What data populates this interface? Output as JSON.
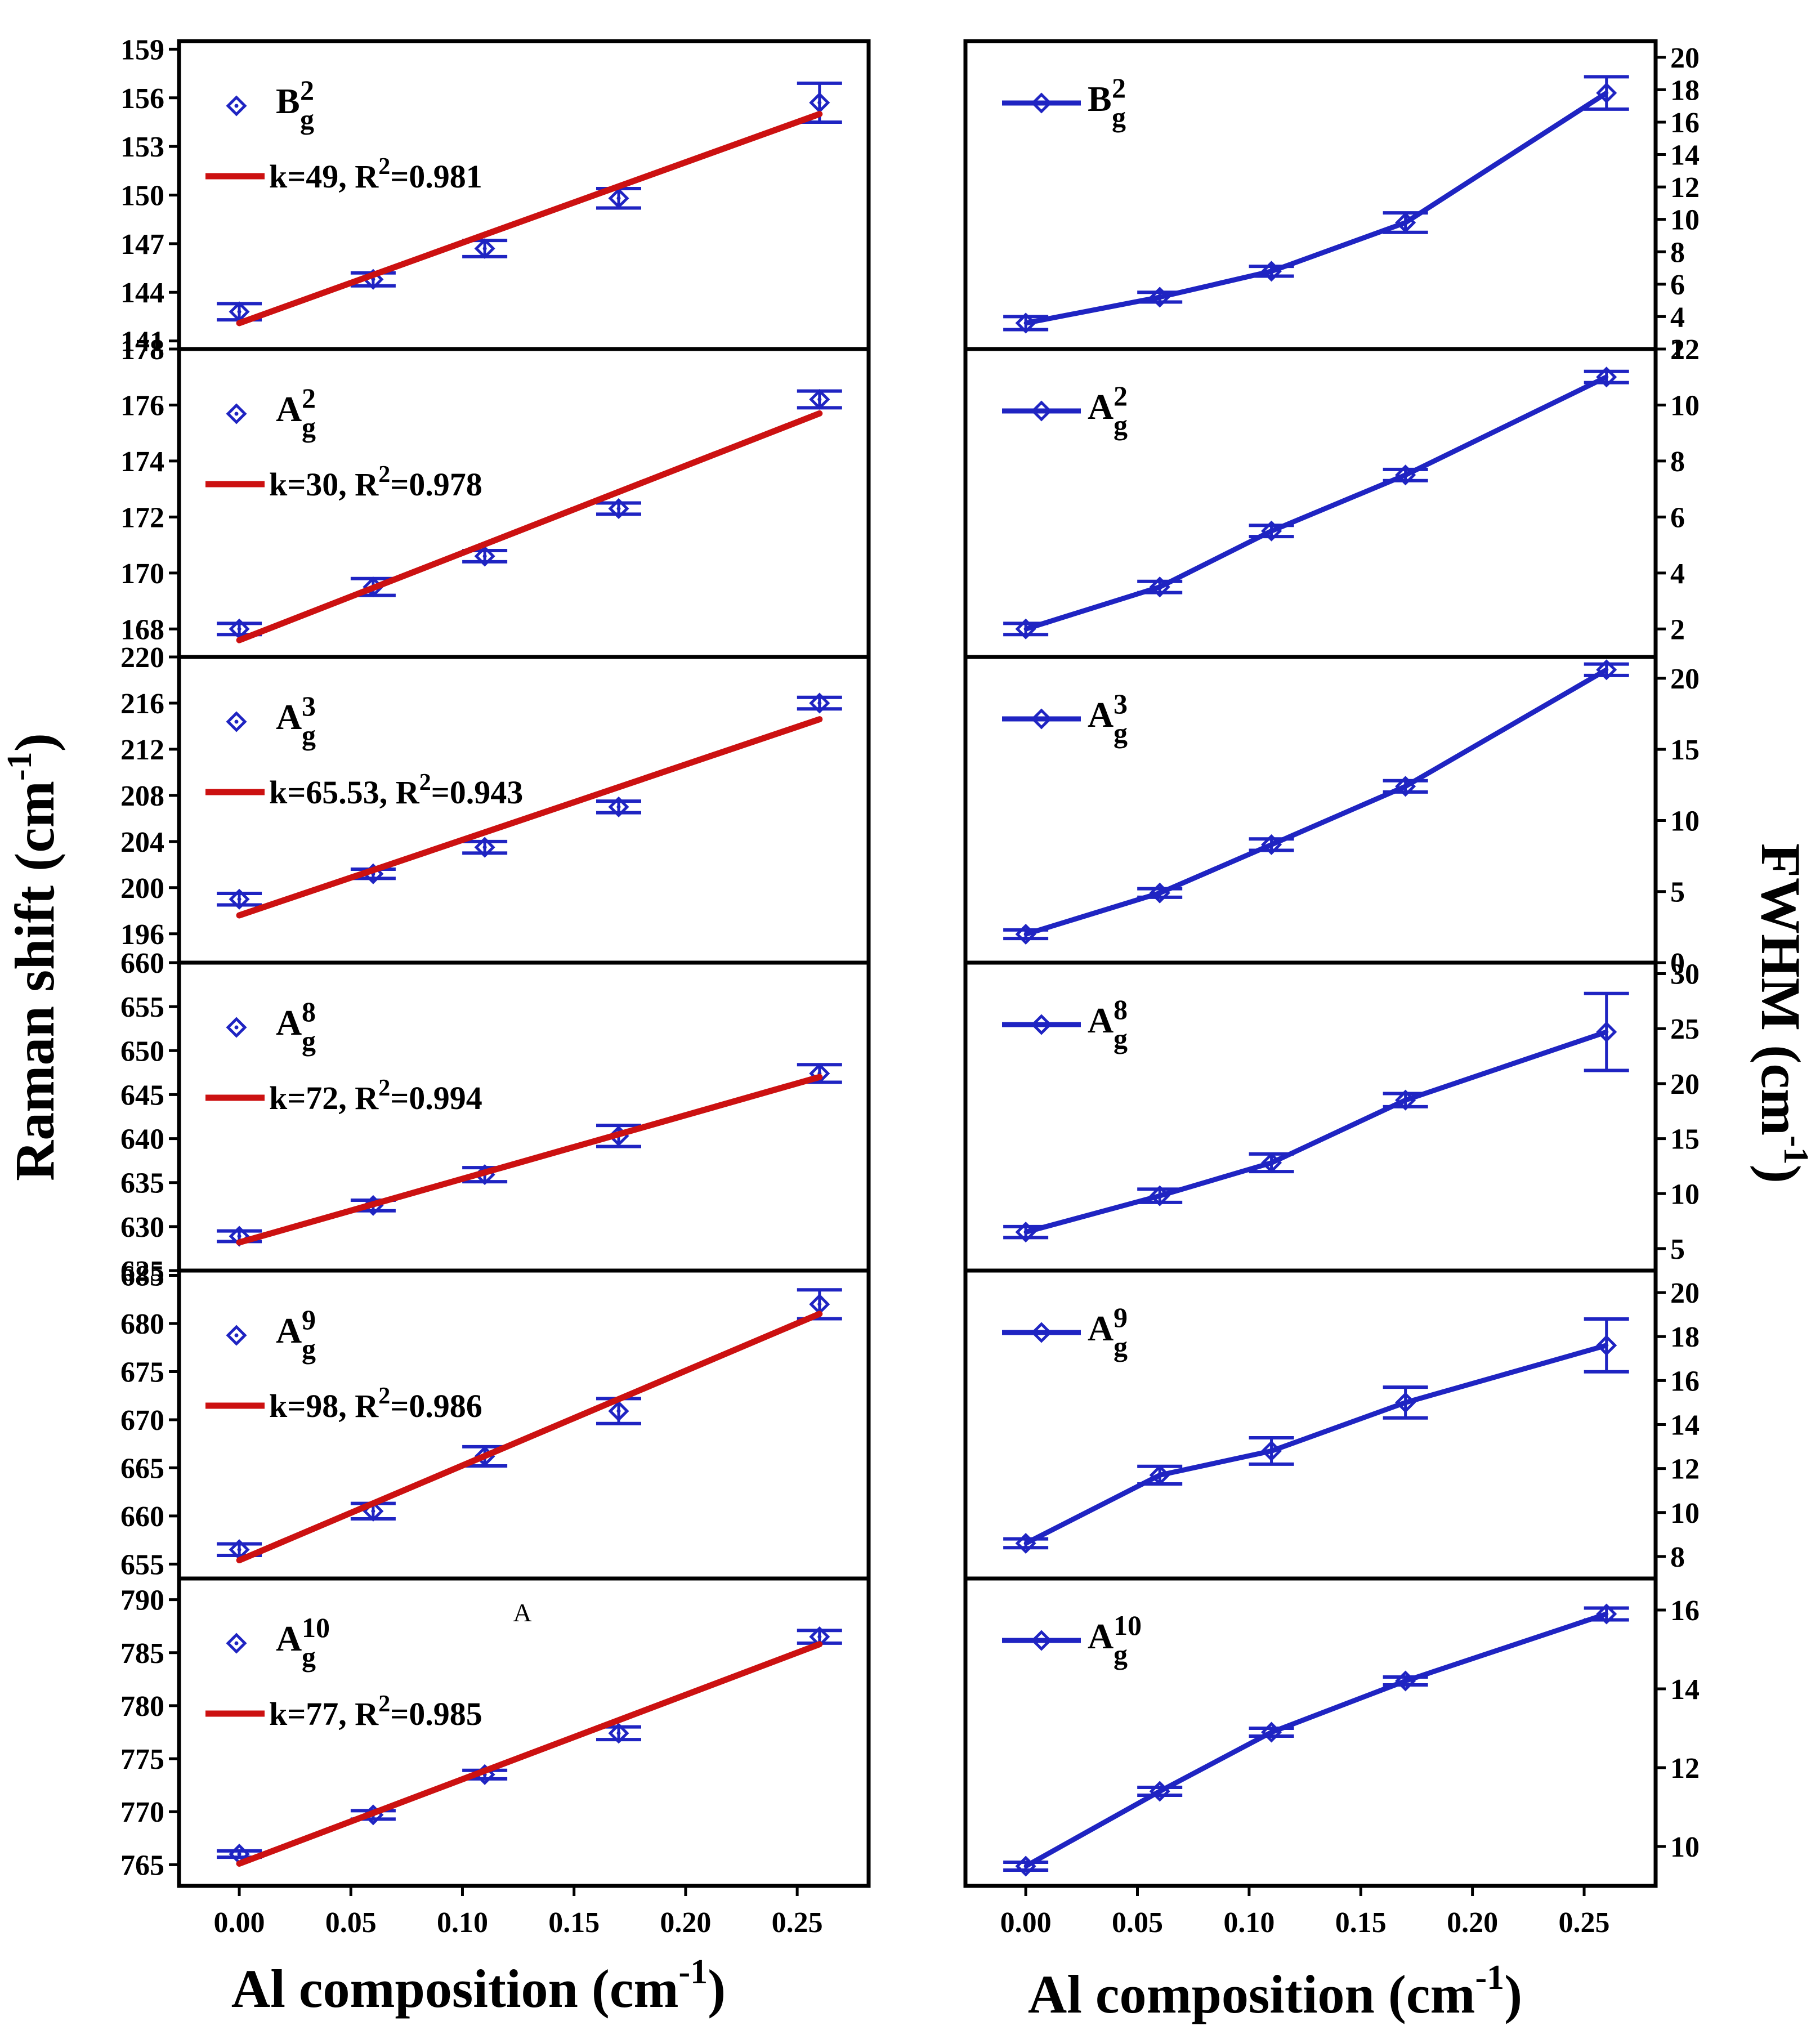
{
  "figure": {
    "left_ylabel_main": "Raman shift (cm",
    "left_ylabel_sup": "-1",
    "left_ylabel_close": ")",
    "right_ylabel_main": "FWHM (cm",
    "right_ylabel_sup": "-1",
    "right_ylabel_close": ")",
    "xlabel_main": "Al  composition (cm",
    "xlabel_sup": "-1",
    "xlabel_close": ")",
    "stray_text": "A",
    "colors": {
      "data": "#1f24c2",
      "fit": "#cc1111",
      "axis": "#000000"
    }
  },
  "chart_data": {
    "x": [
      0.0,
      0.06,
      0.11,
      0.17,
      0.26
    ],
    "x_ticks": [
      0.0,
      0.05,
      0.1,
      0.15,
      0.2,
      0.25
    ],
    "x_tick_labels": [
      "0.00",
      "0.05",
      "0.10",
      "0.15",
      "0.20",
      "0.25"
    ],
    "xlim": [
      -0.027,
      0.282
    ],
    "raman": [
      {
        "type": "scatter",
        "mode": "B",
        "sup": "2",
        "sub": "g",
        "ylim": [
          140.5,
          159.5
        ],
        "ticks": [
          141,
          144,
          147,
          150,
          153,
          156,
          159
        ],
        "y": [
          142.8,
          144.8,
          146.7,
          149.8,
          155.7
        ],
        "err": [
          0.5,
          0.4,
          0.5,
          0.6,
          1.2
        ],
        "fit": {
          "k_label": "k=49",
          "r2_label": "=0.981",
          "y0": 142.1,
          "y1": 155.0
        }
      },
      {
        "type": "scatter",
        "mode": "A",
        "sup": "2",
        "sub": "g",
        "ylim": [
          167.0,
          178.0
        ],
        "ticks": [
          168,
          170,
          172,
          174,
          176,
          178
        ],
        "y": [
          168.0,
          169.5,
          170.6,
          172.3,
          176.2
        ],
        "err": [
          0.2,
          0.3,
          0.2,
          0.2,
          0.3
        ],
        "fit": {
          "k_label": "k=30",
          "r2_label": "=0.978",
          "y0": 167.6,
          "y1": 175.7
        }
      },
      {
        "type": "scatter",
        "mode": "A",
        "sup": "3",
        "sub": "g",
        "ylim": [
          193.5,
          220.0
        ],
        "ticks": [
          196,
          200,
          204,
          208,
          212,
          216,
          220
        ],
        "y": [
          199.0,
          201.2,
          203.5,
          207.0,
          216.0
        ],
        "err": [
          0.5,
          0.4,
          0.5,
          0.5,
          0.5
        ],
        "fit": {
          "k_label": "k=65.53",
          "r2_label": "=0.943",
          "y0": 197.6,
          "y1": 214.6
        }
      },
      {
        "type": "scatter",
        "mode": "A",
        "sup": "8",
        "sub": "g",
        "ylim": [
          625.0,
          660.0
        ],
        "ticks": [
          625,
          630,
          635,
          640,
          645,
          650,
          655,
          660
        ],
        "y": [
          628.9,
          632.4,
          635.9,
          640.3,
          647.4
        ],
        "err": [
          0.6,
          0.6,
          0.8,
          1.2,
          1.0
        ],
        "fit": {
          "k_label": "k=72",
          "r2_label": "=0.994",
          "y0": 628.2,
          "y1": 647.0
        }
      },
      {
        "type": "scatter",
        "mode": "A",
        "sup": "9",
        "sub": "g",
        "ylim": [
          653.5,
          685.5
        ],
        "ticks": [
          655,
          660,
          665,
          670,
          675,
          680,
          685
        ],
        "y": [
          656.5,
          660.5,
          666.2,
          670.9,
          682.0
        ],
        "err": [
          0.6,
          0.8,
          1.0,
          1.3,
          1.5
        ],
        "fit": {
          "k_label": "k=98",
          "r2_label": "=0.986",
          "y0": 655.4,
          "y1": 681.0
        }
      },
      {
        "type": "scatter",
        "mode": "A",
        "sup": "10",
        "sub": "g",
        "ylim": [
          763.0,
          792.0
        ],
        "ticks": [
          765,
          770,
          775,
          780,
          785,
          790
        ],
        "y": [
          766.0,
          769.7,
          773.5,
          777.4,
          786.5
        ],
        "err": [
          0.3,
          0.4,
          0.4,
          0.6,
          0.6
        ],
        "fit": {
          "k_label": "k=77",
          "r2_label": "=0.985",
          "y0": 765.1,
          "y1": 785.8
        }
      }
    ],
    "fwhm": [
      {
        "type": "line",
        "mode": "B",
        "sup": "2",
        "sub": "g",
        "ylim": [
          2,
          21
        ],
        "ticks": [
          2,
          4,
          6,
          8,
          10,
          12,
          14,
          16,
          18,
          20
        ],
        "y": [
          3.6,
          5.2,
          6.8,
          9.8,
          17.8
        ],
        "err": [
          0.4,
          0.3,
          0.3,
          0.6,
          1.0
        ]
      },
      {
        "type": "line",
        "mode": "A",
        "sup": "2",
        "sub": "g",
        "ylim": [
          1,
          12
        ],
        "ticks": [
          2,
          4,
          6,
          8,
          10,
          12
        ],
        "y": [
          2.0,
          3.5,
          5.5,
          7.5,
          11.0
        ],
        "err": [
          0.2,
          0.2,
          0.2,
          0.2,
          0.2
        ]
      },
      {
        "type": "line",
        "mode": "A",
        "sup": "3",
        "sub": "g",
        "ylim": [
          0,
          21.5
        ],
        "ticks": [
          0,
          5,
          10,
          15,
          20
        ],
        "y": [
          2.0,
          4.9,
          8.3,
          12.4,
          20.6
        ],
        "err": [
          0.3,
          0.3,
          0.4,
          0.4,
          0.4
        ]
      },
      {
        "type": "line",
        "mode": "A",
        "sup": "8",
        "sub": "g",
        "ylim": [
          3,
          31
        ],
        "ticks": [
          5,
          10,
          15,
          20,
          25,
          30
        ],
        "y": [
          6.5,
          9.8,
          12.8,
          18.5,
          24.7
        ],
        "err": [
          0.5,
          0.6,
          0.8,
          0.6,
          3.5
        ]
      },
      {
        "type": "line",
        "mode": "A",
        "sup": "9",
        "sub": "g",
        "ylim": [
          7,
          21
        ],
        "ticks": [
          8,
          10,
          12,
          14,
          16,
          18,
          20
        ],
        "y": [
          8.6,
          11.7,
          12.8,
          15.0,
          17.6
        ],
        "err": [
          0.2,
          0.4,
          0.6,
          0.7,
          1.2
        ]
      },
      {
        "type": "line",
        "mode": "A",
        "sup": "10",
        "sub": "g",
        "ylim": [
          9.0,
          16.8
        ],
        "ticks": [
          10,
          12,
          14,
          16
        ],
        "y": [
          9.5,
          11.4,
          12.9,
          14.2,
          15.9
        ],
        "err": [
          0.1,
          0.1,
          0.1,
          0.1,
          0.15
        ]
      }
    ]
  }
}
